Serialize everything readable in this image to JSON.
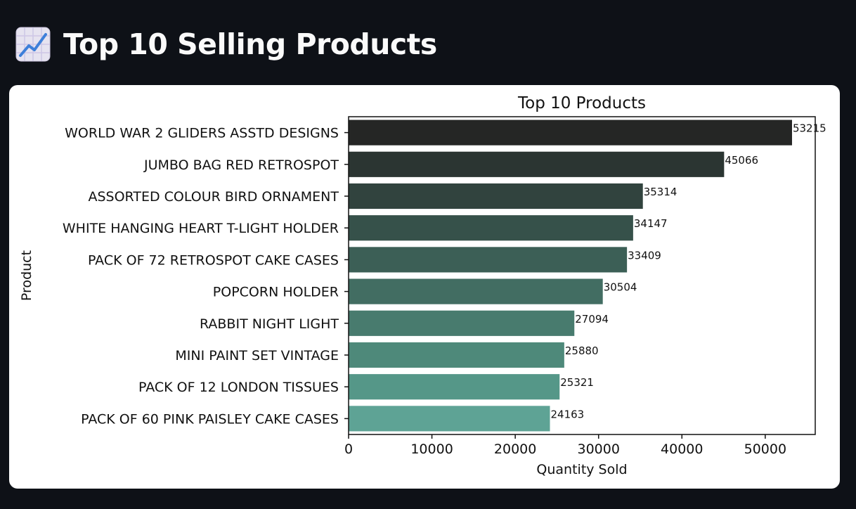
{
  "header": {
    "icon": "chart-increasing-icon",
    "title": "Top 10 Selling Products"
  },
  "chart_data": {
    "type": "bar",
    "orientation": "horizontal",
    "title": "Top 10 Products",
    "xlabel": "Quantity Sold",
    "ylabel": "Product",
    "xlim": [
      0,
      56000
    ],
    "xticks": [
      0,
      10000,
      20000,
      30000,
      40000,
      50000
    ],
    "grid": false,
    "categories": [
      "WORLD WAR 2 GLIDERS ASSTD DESIGNS",
      "JUMBO BAG RED RETROSPOT",
      "ASSORTED COLOUR BIRD ORNAMENT",
      "WHITE HANGING HEART T-LIGHT HOLDER",
      "PACK OF 72 RETROSPOT CAKE CASES",
      "POPCORN HOLDER",
      "RABBIT NIGHT LIGHT",
      "MINI PAINT SET VINTAGE ",
      "PACK OF 12 LONDON TISSUES ",
      "PACK OF 60 PINK PAISLEY CAKE CASES"
    ],
    "values": [
      53215,
      45066,
      35314,
      34147,
      33409,
      30504,
      27094,
      25880,
      25321,
      24163
    ],
    "data_labels": [
      "53215",
      "45066",
      "35314",
      "34147",
      "33409",
      "30504",
      "27094",
      "25880",
      "25321",
      "24163"
    ],
    "colors": [
      "#252625",
      "#2b3532",
      "#31433e",
      "#36514a",
      "#3c5f56",
      "#426d62",
      "#487b6e",
      "#4e897a",
      "#559788",
      "#5ea395"
    ]
  }
}
